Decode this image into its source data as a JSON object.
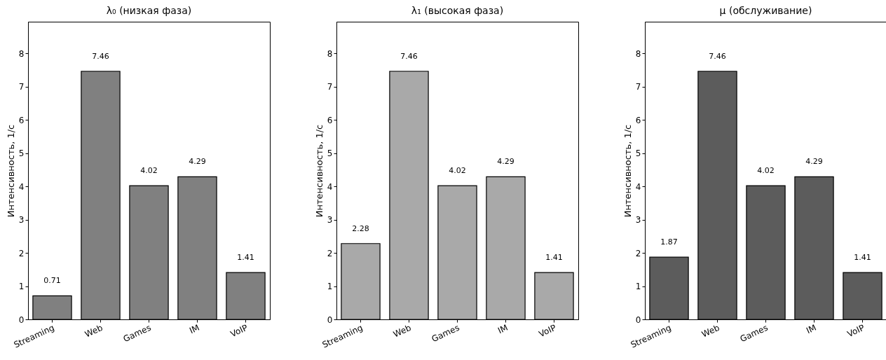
{
  "chart_data": [
    {
      "type": "bar",
      "title": "λ₀ (низкая фаза)",
      "ylabel": "Интенсивность, 1/с",
      "categories": [
        "Streaming",
        "Web",
        "Games",
        "IM",
        "VoIP"
      ],
      "values": [
        0.71,
        7.46,
        4.02,
        4.29,
        1.41
      ],
      "color": "#808080",
      "ylim": [
        0,
        8.95
      ],
      "yticks": [
        0,
        1,
        2,
        3,
        4,
        5,
        6,
        7,
        8
      ],
      "data_labels": true
    },
    {
      "type": "bar",
      "title": "λ₁ (высокая фаза)",
      "ylabel": "Интенсивность, 1/с",
      "categories": [
        "Streaming",
        "Web",
        "Games",
        "IM",
        "VoIP"
      ],
      "values": [
        2.28,
        7.46,
        4.02,
        4.29,
        1.41
      ],
      "color": "#a9a9a9",
      "ylim": [
        0,
        8.95
      ],
      "yticks": [
        0,
        1,
        2,
        3,
        4,
        5,
        6,
        7,
        8
      ],
      "data_labels": true
    },
    {
      "type": "bar",
      "title": "μ (обслуживание)",
      "ylabel": "Интенсивность, 1/с",
      "categories": [
        "Streaming",
        "Web",
        "Games",
        "IM",
        "VoIP"
      ],
      "values": [
        1.87,
        7.46,
        4.02,
        4.29,
        1.41
      ],
      "color": "#5c5c5c",
      "ylim": [
        0,
        8.95
      ],
      "yticks": [
        0,
        1,
        2,
        3,
        4,
        5,
        6,
        7,
        8
      ],
      "data_labels": true
    }
  ]
}
